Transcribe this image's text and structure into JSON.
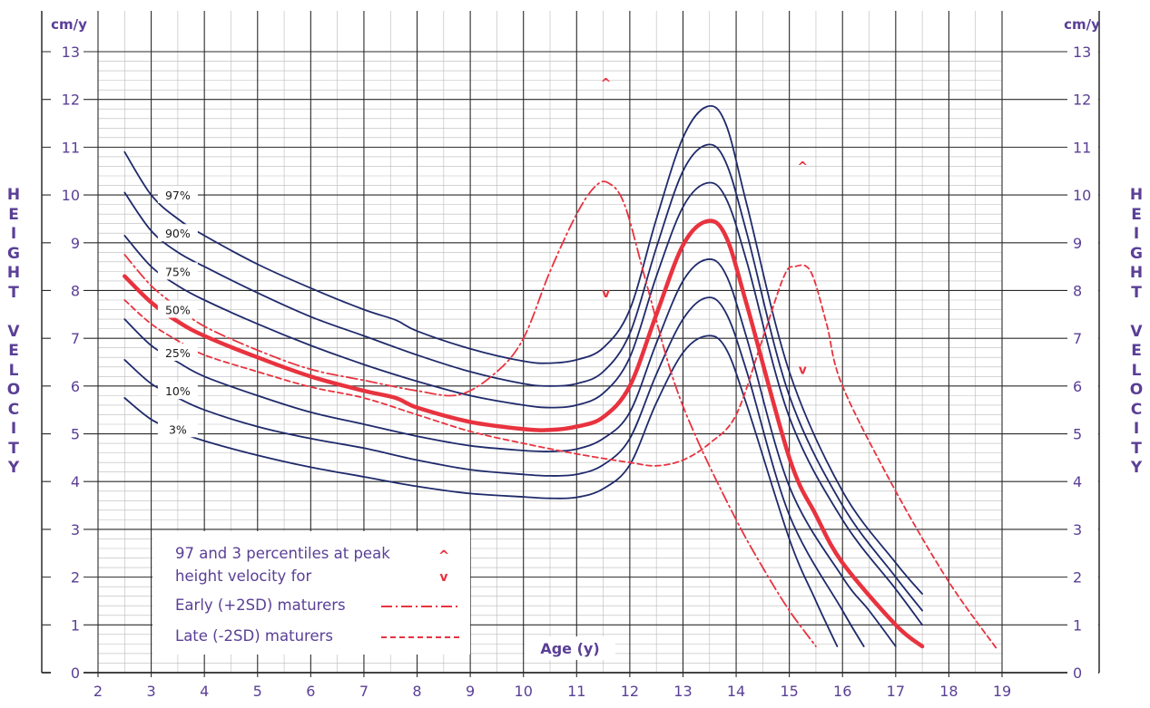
{
  "chart_data": {
    "type": "line",
    "xlabel": "Age (y)",
    "ylabel": "HEIGHT VELOCITY",
    "yunit": "cm/y",
    "xlim": [
      2,
      19
    ],
    "ylim": [
      0,
      13
    ],
    "xticks": [
      "2",
      "3",
      "4",
      "5",
      "6",
      "7",
      "8",
      "9",
      "10",
      "11",
      "12",
      "13",
      "14",
      "15",
      "16",
      "17",
      "18",
      "19"
    ],
    "yticks": [
      "0",
      "1",
      "2",
      "3",
      "4",
      "5",
      "6",
      "7",
      "8",
      "9",
      "10",
      "11",
      "12",
      "13"
    ],
    "minor_grid": true,
    "grid": true,
    "colors": {
      "percentile": "#1f2a6b",
      "highlight": "#e8333f",
      "text": "#5a3f96",
      "marker": "#e8333f",
      "grid_major": "#2a2a2a",
      "grid_minor": "#b9b9b9"
    },
    "percentile_labels": [
      {
        "text": "97%",
        "x": 3.5,
        "y": 10.0
      },
      {
        "text": "90%",
        "x": 3.5,
        "y": 9.2
      },
      {
        "text": "75%",
        "x": 3.5,
        "y": 8.4
      },
      {
        "text": "50%",
        "x": 3.5,
        "y": 7.6
      },
      {
        "text": "25%",
        "x": 3.5,
        "y": 6.7
      },
      {
        "text": "10%",
        "x": 3.5,
        "y": 5.9
      },
      {
        "text": "3%",
        "x": 3.5,
        "y": 5.1
      }
    ],
    "series": [
      {
        "name": "97%",
        "style": "percentile",
        "points": [
          [
            2.5,
            10.9
          ],
          [
            3,
            10.0
          ],
          [
            3.5,
            9.5
          ],
          [
            4,
            9.15
          ],
          [
            5,
            8.55
          ],
          [
            6,
            8.05
          ],
          [
            7,
            7.6
          ],
          [
            7.6,
            7.38
          ],
          [
            8,
            7.15
          ],
          [
            9,
            6.78
          ],
          [
            10,
            6.52
          ],
          [
            10.5,
            6.48
          ],
          [
            11,
            6.55
          ],
          [
            11.5,
            6.8
          ],
          [
            12,
            7.6
          ],
          [
            12.5,
            9.5
          ],
          [
            13,
            11.2
          ],
          [
            13.45,
            11.85
          ],
          [
            13.8,
            11.5
          ],
          [
            14.2,
            9.8
          ],
          [
            15,
            6.3
          ],
          [
            16,
            3.8
          ],
          [
            17,
            2.3
          ],
          [
            17.5,
            1.65
          ]
        ]
      },
      {
        "name": "90%",
        "style": "percentile",
        "points": [
          [
            2.5,
            10.05
          ],
          [
            3,
            9.25
          ],
          [
            3.5,
            8.8
          ],
          [
            4,
            8.5
          ],
          [
            5,
            7.95
          ],
          [
            6,
            7.45
          ],
          [
            7,
            7.05
          ],
          [
            8,
            6.65
          ],
          [
            9,
            6.3
          ],
          [
            10,
            6.05
          ],
          [
            10.5,
            6.0
          ],
          [
            11,
            6.05
          ],
          [
            11.5,
            6.3
          ],
          [
            12,
            7.1
          ],
          [
            12.5,
            8.9
          ],
          [
            13,
            10.5
          ],
          [
            13.45,
            11.05
          ],
          [
            13.8,
            10.7
          ],
          [
            14.2,
            9.2
          ],
          [
            15,
            5.8
          ],
          [
            16,
            3.5
          ],
          [
            17,
            2.0
          ],
          [
            17.5,
            1.3
          ]
        ]
      },
      {
        "name": "75%",
        "style": "percentile",
        "points": [
          [
            2.5,
            9.15
          ],
          [
            3,
            8.5
          ],
          [
            3.5,
            8.1
          ],
          [
            4,
            7.8
          ],
          [
            5,
            7.3
          ],
          [
            6,
            6.85
          ],
          [
            7,
            6.45
          ],
          [
            8,
            6.1
          ],
          [
            9,
            5.8
          ],
          [
            10,
            5.6
          ],
          [
            10.5,
            5.55
          ],
          [
            11,
            5.6
          ],
          [
            11.5,
            5.85
          ],
          [
            12,
            6.6
          ],
          [
            12.5,
            8.3
          ],
          [
            13,
            9.75
          ],
          [
            13.45,
            10.25
          ],
          [
            13.8,
            9.95
          ],
          [
            14.2,
            8.6
          ],
          [
            15,
            5.35
          ],
          [
            16,
            3.2
          ],
          [
            17,
            1.75
          ],
          [
            17.5,
            1.0
          ]
        ]
      },
      {
        "name": "50%",
        "style": "highlight",
        "points": [
          [
            2.5,
            8.3
          ],
          [
            3,
            7.75
          ],
          [
            3.5,
            7.35
          ],
          [
            4,
            7.05
          ],
          [
            5,
            6.6
          ],
          [
            6,
            6.2
          ],
          [
            7,
            5.9
          ],
          [
            7.6,
            5.75
          ],
          [
            8,
            5.55
          ],
          [
            9,
            5.25
          ],
          [
            10,
            5.1
          ],
          [
            10.5,
            5.08
          ],
          [
            11,
            5.15
          ],
          [
            11.5,
            5.35
          ],
          [
            12,
            6.0
          ],
          [
            12.5,
            7.5
          ],
          [
            13,
            8.95
          ],
          [
            13.45,
            9.45
          ],
          [
            13.8,
            9.15
          ],
          [
            14.2,
            7.7
          ],
          [
            15,
            4.5
          ],
          [
            15.5,
            3.3
          ],
          [
            16,
            2.3
          ],
          [
            17,
            1.0
          ],
          [
            17.5,
            0.55
          ]
        ]
      },
      {
        "name": "25%",
        "style": "percentile",
        "points": [
          [
            2.5,
            7.4
          ],
          [
            3,
            6.85
          ],
          [
            3.5,
            6.5
          ],
          [
            4,
            6.2
          ],
          [
            5,
            5.8
          ],
          [
            6,
            5.45
          ],
          [
            7,
            5.2
          ],
          [
            8,
            4.95
          ],
          [
            9,
            4.75
          ],
          [
            10,
            4.65
          ],
          [
            10.5,
            4.63
          ],
          [
            11,
            4.68
          ],
          [
            11.5,
            4.9
          ],
          [
            12,
            5.45
          ],
          [
            12.5,
            6.9
          ],
          [
            13,
            8.2
          ],
          [
            13.45,
            8.65
          ],
          [
            13.8,
            8.35
          ],
          [
            14.2,
            7.0
          ],
          [
            15,
            3.9
          ],
          [
            16,
            2.0
          ],
          [
            16.5,
            1.3
          ],
          [
            17,
            0.55
          ]
        ]
      },
      {
        "name": "10%",
        "style": "percentile",
        "points": [
          [
            2.5,
            6.55
          ],
          [
            3,
            6.05
          ],
          [
            3.5,
            5.75
          ],
          [
            4,
            5.5
          ],
          [
            5,
            5.15
          ],
          [
            6,
            4.9
          ],
          [
            7,
            4.7
          ],
          [
            8,
            4.45
          ],
          [
            9,
            4.25
          ],
          [
            10,
            4.15
          ],
          [
            10.5,
            4.12
          ],
          [
            11,
            4.15
          ],
          [
            11.5,
            4.35
          ],
          [
            12,
            4.9
          ],
          [
            12.5,
            6.25
          ],
          [
            13,
            7.4
          ],
          [
            13.45,
            7.85
          ],
          [
            13.8,
            7.55
          ],
          [
            14.2,
            6.3
          ],
          [
            15,
            3.3
          ],
          [
            16,
            1.3
          ],
          [
            16.4,
            0.55
          ]
        ]
      },
      {
        "name": "3%",
        "style": "percentile",
        "points": [
          [
            2.5,
            5.75
          ],
          [
            3,
            5.3
          ],
          [
            3.5,
            5.05
          ],
          [
            4,
            4.85
          ],
          [
            5,
            4.55
          ],
          [
            6,
            4.3
          ],
          [
            7,
            4.1
          ],
          [
            8,
            3.9
          ],
          [
            9,
            3.75
          ],
          [
            10,
            3.68
          ],
          [
            10.5,
            3.65
          ],
          [
            11,
            3.67
          ],
          [
            11.5,
            3.85
          ],
          [
            12,
            4.35
          ],
          [
            12.5,
            5.65
          ],
          [
            13,
            6.7
          ],
          [
            13.45,
            7.05
          ],
          [
            13.8,
            6.8
          ],
          [
            14.2,
            5.6
          ],
          [
            15,
            2.8
          ],
          [
            15.5,
            1.5
          ],
          [
            15.9,
            0.55
          ]
        ]
      },
      {
        "name": "Early (+2SD) maturers",
        "style": "dashdot",
        "points": [
          [
            2.5,
            8.75
          ],
          [
            3,
            8.1
          ],
          [
            3.5,
            7.65
          ],
          [
            4,
            7.25
          ],
          [
            5,
            6.75
          ],
          [
            6,
            6.35
          ],
          [
            7,
            6.12
          ],
          [
            8,
            5.9
          ],
          [
            8.8,
            5.82
          ],
          [
            9.5,
            6.3
          ],
          [
            10,
            7.0
          ],
          [
            10.5,
            8.4
          ],
          [
            11,
            9.6
          ],
          [
            11.35,
            10.18
          ],
          [
            11.6,
            10.25
          ],
          [
            11.9,
            9.8
          ],
          [
            12.3,
            8.2
          ],
          [
            12.8,
            6.2
          ],
          [
            13.3,
            4.8
          ],
          [
            14,
            3.2
          ],
          [
            14.5,
            2.2
          ],
          [
            15,
            1.3
          ],
          [
            15.5,
            0.55
          ]
        ]
      },
      {
        "name": "Late (-2SD) maturers",
        "style": "dashed",
        "points": [
          [
            2.5,
            7.8
          ],
          [
            3,
            7.3
          ],
          [
            3.5,
            6.95
          ],
          [
            4,
            6.65
          ],
          [
            5,
            6.3
          ],
          [
            6,
            5.98
          ],
          [
            7,
            5.75
          ],
          [
            8,
            5.4
          ],
          [
            9,
            5.05
          ],
          [
            10,
            4.8
          ],
          [
            11,
            4.58
          ],
          [
            12,
            4.4
          ],
          [
            12.5,
            4.33
          ],
          [
            13,
            4.45
          ],
          [
            13.5,
            4.8
          ],
          [
            14,
            5.4
          ],
          [
            14.5,
            7.0
          ],
          [
            14.9,
            8.3
          ],
          [
            15.1,
            8.5
          ],
          [
            15.4,
            8.4
          ],
          [
            15.7,
            7.3
          ],
          [
            16,
            6.0
          ],
          [
            17,
            3.8
          ],
          [
            18,
            1.9
          ],
          [
            18.9,
            0.5
          ]
        ]
      }
    ],
    "peak_markers": [
      {
        "symbol": "^",
        "x": 11.55,
        "y": 12.35
      },
      {
        "symbol": "v",
        "x": 11.55,
        "y": 7.95
      },
      {
        "symbol": "^",
        "x": 15.25,
        "y": 10.6
      },
      {
        "symbol": "v",
        "x": 15.25,
        "y": 6.35
      }
    ],
    "legend": {
      "placement": "bottom-left",
      "peak_text_1": "97 and 3 percentiles at peak",
      "peak_text_2": "height velocity for",
      "up_symbol": "^",
      "down_symbol": "v",
      "early_label": "Early (+2SD) maturers",
      "late_label": "Late (-2SD) maturers"
    }
  }
}
